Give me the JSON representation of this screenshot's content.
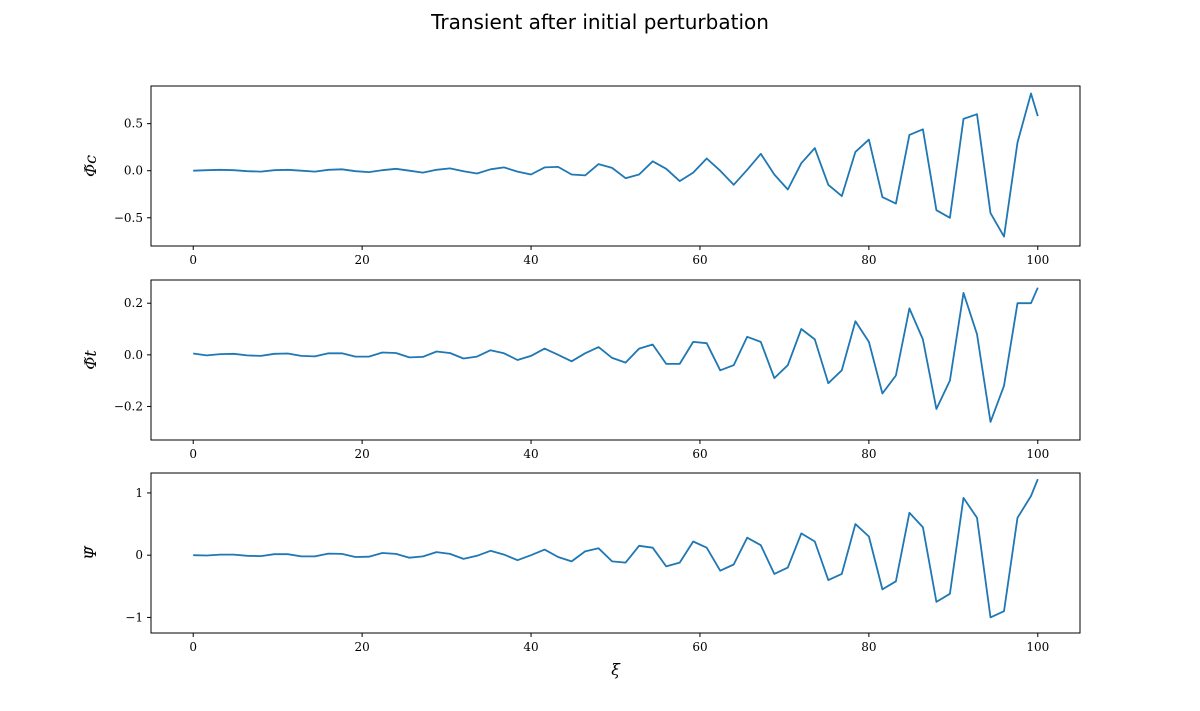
{
  "figure": {
    "title": "Transient after initial perturbation",
    "line_color": "#1f77b4"
  },
  "chart_data": [
    {
      "type": "line",
      "ylabel": "Φ̃c",
      "xlabel": "",
      "xlim": [
        -5,
        105
      ],
      "ylim": [
        -0.8,
        0.9
      ],
      "xticks": [
        0,
        20,
        40,
        60,
        80,
        100
      ],
      "xtick_labels": [
        "0",
        "20",
        "40",
        "60",
        "80",
        "100"
      ],
      "yticks": [
        -0.5,
        0.0,
        0.5
      ],
      "ytick_labels": [
        "−0.5",
        "0.0",
        "0.5"
      ],
      "series": [
        {
          "x": [
            0,
            1.6,
            3.2,
            4.8,
            6.4,
            8.0,
            9.6,
            11.2,
            12.8,
            14.4,
            16.0,
            17.6,
            19.2,
            20.8,
            22.4,
            24.0,
            25.6,
            27.2,
            28.8,
            30.4,
            32.0,
            33.6,
            35.2,
            36.8,
            38.4,
            40.0,
            41.6,
            43.2,
            44.8,
            46.4,
            48.0,
            49.6,
            51.2,
            52.8,
            54.4,
            56.0,
            57.6,
            59.2,
            60.8,
            62.4,
            64.0,
            65.6,
            67.2,
            68.8,
            70.4,
            72.0,
            73.6,
            75.2,
            76.8,
            78.4,
            80.0,
            81.6,
            83.2,
            84.8,
            86.4,
            88.0,
            89.6,
            91.2,
            92.8,
            94.4,
            96.0,
            97.6,
            99.2,
            100
          ],
          "y": [
            0.0,
            0.005,
            0.01,
            0.005,
            -0.005,
            -0.01,
            0.005,
            0.01,
            0.0,
            -0.01,
            0.01,
            0.015,
            -0.005,
            -0.015,
            0.005,
            0.02,
            0.0,
            -0.02,
            0.01,
            0.025,
            -0.005,
            -0.03,
            0.015,
            0.035,
            -0.01,
            -0.04,
            0.035,
            0.04,
            -0.04,
            -0.05,
            0.07,
            0.03,
            -0.08,
            -0.04,
            0.1,
            0.02,
            -0.11,
            -0.02,
            0.13,
            0.0,
            -0.15,
            0.01,
            0.18,
            -0.04,
            -0.2,
            0.08,
            0.24,
            -0.15,
            -0.27,
            0.2,
            0.33,
            -0.28,
            -0.35,
            0.38,
            0.44,
            -0.42,
            -0.5,
            0.55,
            0.6,
            -0.45,
            -0.7,
            0.3,
            0.82,
            0.58
          ]
        }
      ]
    },
    {
      "type": "line",
      "ylabel": "Φ̃t",
      "xlabel": "",
      "xlim": [
        -5,
        105
      ],
      "ylim": [
        -0.33,
        0.29
      ],
      "xticks": [
        0,
        20,
        40,
        60,
        80,
        100
      ],
      "xtick_labels": [
        "0",
        "20",
        "40",
        "60",
        "80",
        "100"
      ],
      "yticks": [
        -0.2,
        0.0,
        0.2
      ],
      "ytick_labels": [
        "−0.2",
        "0.0",
        "0.2"
      ],
      "series": [
        {
          "x": [
            0,
            1.6,
            3.2,
            4.8,
            6.4,
            8.0,
            9.6,
            11.2,
            12.8,
            14.4,
            16.0,
            17.6,
            19.2,
            20.8,
            22.4,
            24.0,
            25.6,
            27.2,
            28.8,
            30.4,
            32.0,
            33.6,
            35.2,
            36.8,
            38.4,
            40.0,
            41.6,
            43.2,
            44.8,
            46.4,
            48.0,
            49.6,
            51.2,
            52.8,
            54.4,
            56.0,
            57.6,
            59.2,
            60.8,
            62.4,
            64.0,
            65.6,
            67.2,
            68.8,
            70.4,
            72.0,
            73.6,
            75.2,
            76.8,
            78.4,
            80.0,
            81.6,
            83.2,
            84.8,
            86.4,
            88.0,
            89.6,
            91.2,
            92.8,
            94.4,
            96.0,
            97.6,
            99.2,
            100
          ],
          "y": [
            0.005,
            -0.002,
            0.003,
            0.004,
            -0.002,
            -0.004,
            0.004,
            0.005,
            -0.004,
            -0.006,
            0.006,
            0.006,
            -0.007,
            -0.007,
            0.009,
            0.007,
            -0.01,
            -0.008,
            0.013,
            0.007,
            -0.014,
            -0.007,
            0.018,
            0.006,
            -0.02,
            -0.004,
            0.024,
            0.0,
            -0.025,
            0.006,
            0.03,
            -0.012,
            -0.03,
            0.024,
            0.04,
            -0.035,
            -0.035,
            0.05,
            0.045,
            -0.06,
            -0.04,
            0.07,
            0.05,
            -0.09,
            -0.04,
            0.1,
            0.06,
            -0.11,
            -0.06,
            0.13,
            0.05,
            -0.15,
            -0.08,
            0.18,
            0.06,
            -0.21,
            -0.1,
            0.24,
            0.08,
            -0.26,
            -0.12,
            0.2,
            0.2,
            0.26
          ]
        }
      ]
    },
    {
      "type": "line",
      "ylabel": "Ψ̃",
      "xlabel": "ξ",
      "xlim": [
        -5,
        105
      ],
      "ylim": [
        -1.25,
        1.32
      ],
      "xticks": [
        0,
        20,
        40,
        60,
        80,
        100
      ],
      "xtick_labels": [
        "0",
        "20",
        "40",
        "60",
        "80",
        "100"
      ],
      "yticks": [
        -1,
        0,
        1
      ],
      "ytick_labels": [
        "−1",
        "0",
        "1"
      ],
      "series": [
        {
          "x": [
            0,
            1.6,
            3.2,
            4.8,
            6.4,
            8.0,
            9.6,
            11.2,
            12.8,
            14.4,
            16.0,
            17.6,
            19.2,
            20.8,
            22.4,
            24.0,
            25.6,
            27.2,
            28.8,
            30.4,
            32.0,
            33.6,
            35.2,
            36.8,
            38.4,
            40.0,
            41.6,
            43.2,
            44.8,
            46.4,
            48.0,
            49.6,
            51.2,
            52.8,
            54.4,
            56.0,
            57.6,
            59.2,
            60.8,
            62.4,
            64.0,
            65.6,
            67.2,
            68.8,
            70.4,
            72.0,
            73.6,
            75.2,
            76.8,
            78.4,
            80.0,
            81.6,
            83.2,
            84.8,
            86.4,
            88.0,
            89.6,
            91.2,
            92.8,
            94.4,
            96.0,
            97.6,
            99.2,
            100
          ],
          "y": [
            0.0,
            -0.005,
            0.01,
            0.01,
            -0.01,
            -0.015,
            0.015,
            0.015,
            -0.02,
            -0.02,
            0.025,
            0.02,
            -0.03,
            -0.025,
            0.035,
            0.02,
            -0.04,
            -0.02,
            0.05,
            0.02,
            -0.06,
            -0.01,
            0.07,
            0.01,
            -0.08,
            0.0,
            0.09,
            -0.03,
            -0.1,
            0.06,
            0.11,
            -0.1,
            -0.12,
            0.15,
            0.12,
            -0.18,
            -0.12,
            0.22,
            0.12,
            -0.25,
            -0.15,
            0.28,
            0.16,
            -0.3,
            -0.2,
            0.35,
            0.22,
            -0.4,
            -0.3,
            0.5,
            0.3,
            -0.55,
            -0.42,
            0.68,
            0.45,
            -0.75,
            -0.62,
            0.92,
            0.6,
            -1.0,
            -0.9,
            0.6,
            0.95,
            1.22
          ]
        }
      ]
    }
  ]
}
